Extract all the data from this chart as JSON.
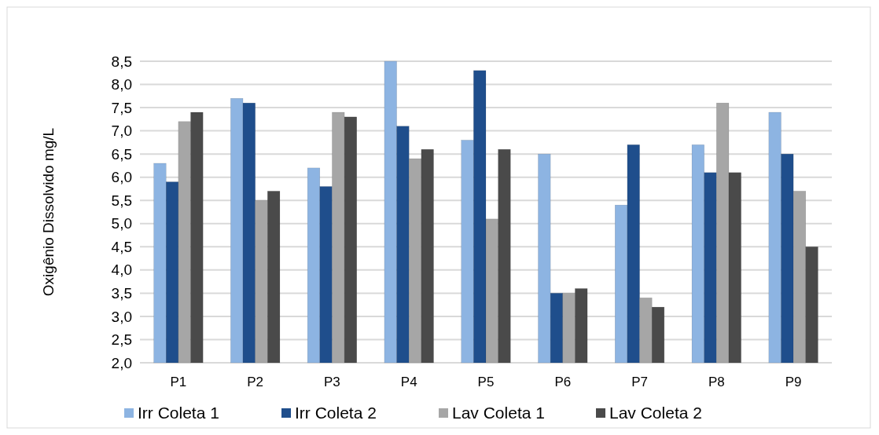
{
  "chart_data": {
    "type": "bar",
    "ylabel": "Oxigênio Dissolvido mg/L",
    "categories": [
      "P1",
      "P2",
      "P3",
      "P4",
      "P5",
      "P6",
      "P7",
      "P8",
      "P9"
    ],
    "series": [
      {
        "name": "Irr Coleta 1",
        "color": "#8db4e2",
        "values": [
          6.3,
          7.7,
          6.2,
          8.5,
          6.8,
          6.5,
          5.4,
          6.7,
          7.4
        ]
      },
      {
        "name": "Irr Coleta 2",
        "color": "#1f4e8c",
        "values": [
          5.9,
          7.6,
          5.8,
          7.1,
          8.3,
          3.5,
          6.7,
          6.1,
          6.5
        ]
      },
      {
        "name": "Lav Coleta 1",
        "color": "#a6a6a6",
        "values": [
          7.2,
          5.5,
          7.4,
          6.4,
          5.1,
          3.5,
          3.4,
          7.6,
          5.7
        ]
      },
      {
        "name": "Lav Coleta 2",
        "color": "#4a4a4a",
        "values": [
          7.4,
          5.7,
          7.3,
          6.6,
          6.6,
          3.6,
          3.2,
          6.1,
          4.5
        ]
      }
    ],
    "ylim": [
      2,
      8.5
    ],
    "yticks": [
      {
        "value": 2,
        "label": "2,0"
      },
      {
        "value": 2.5,
        "label": "2,5"
      },
      {
        "value": 3,
        "label": "3,0"
      },
      {
        "value": 3.5,
        "label": "3,5"
      },
      {
        "value": 4,
        "label": "4,0"
      },
      {
        "value": 4.5,
        "label": "4,5"
      },
      {
        "value": 5,
        "label": "5,0"
      },
      {
        "value": 5.5,
        "label": "5,5"
      },
      {
        "value": 6,
        "label": "6,0"
      },
      {
        "value": 6.5,
        "label": "6,5"
      },
      {
        "value": 7,
        "label": "7,0"
      },
      {
        "value": 7.5,
        "label": "7,5"
      },
      {
        "value": 8,
        "label": "8,0"
      },
      {
        "value": 8.5,
        "label": "8,5"
      }
    ],
    "grid": "y",
    "legend": "bottom"
  }
}
